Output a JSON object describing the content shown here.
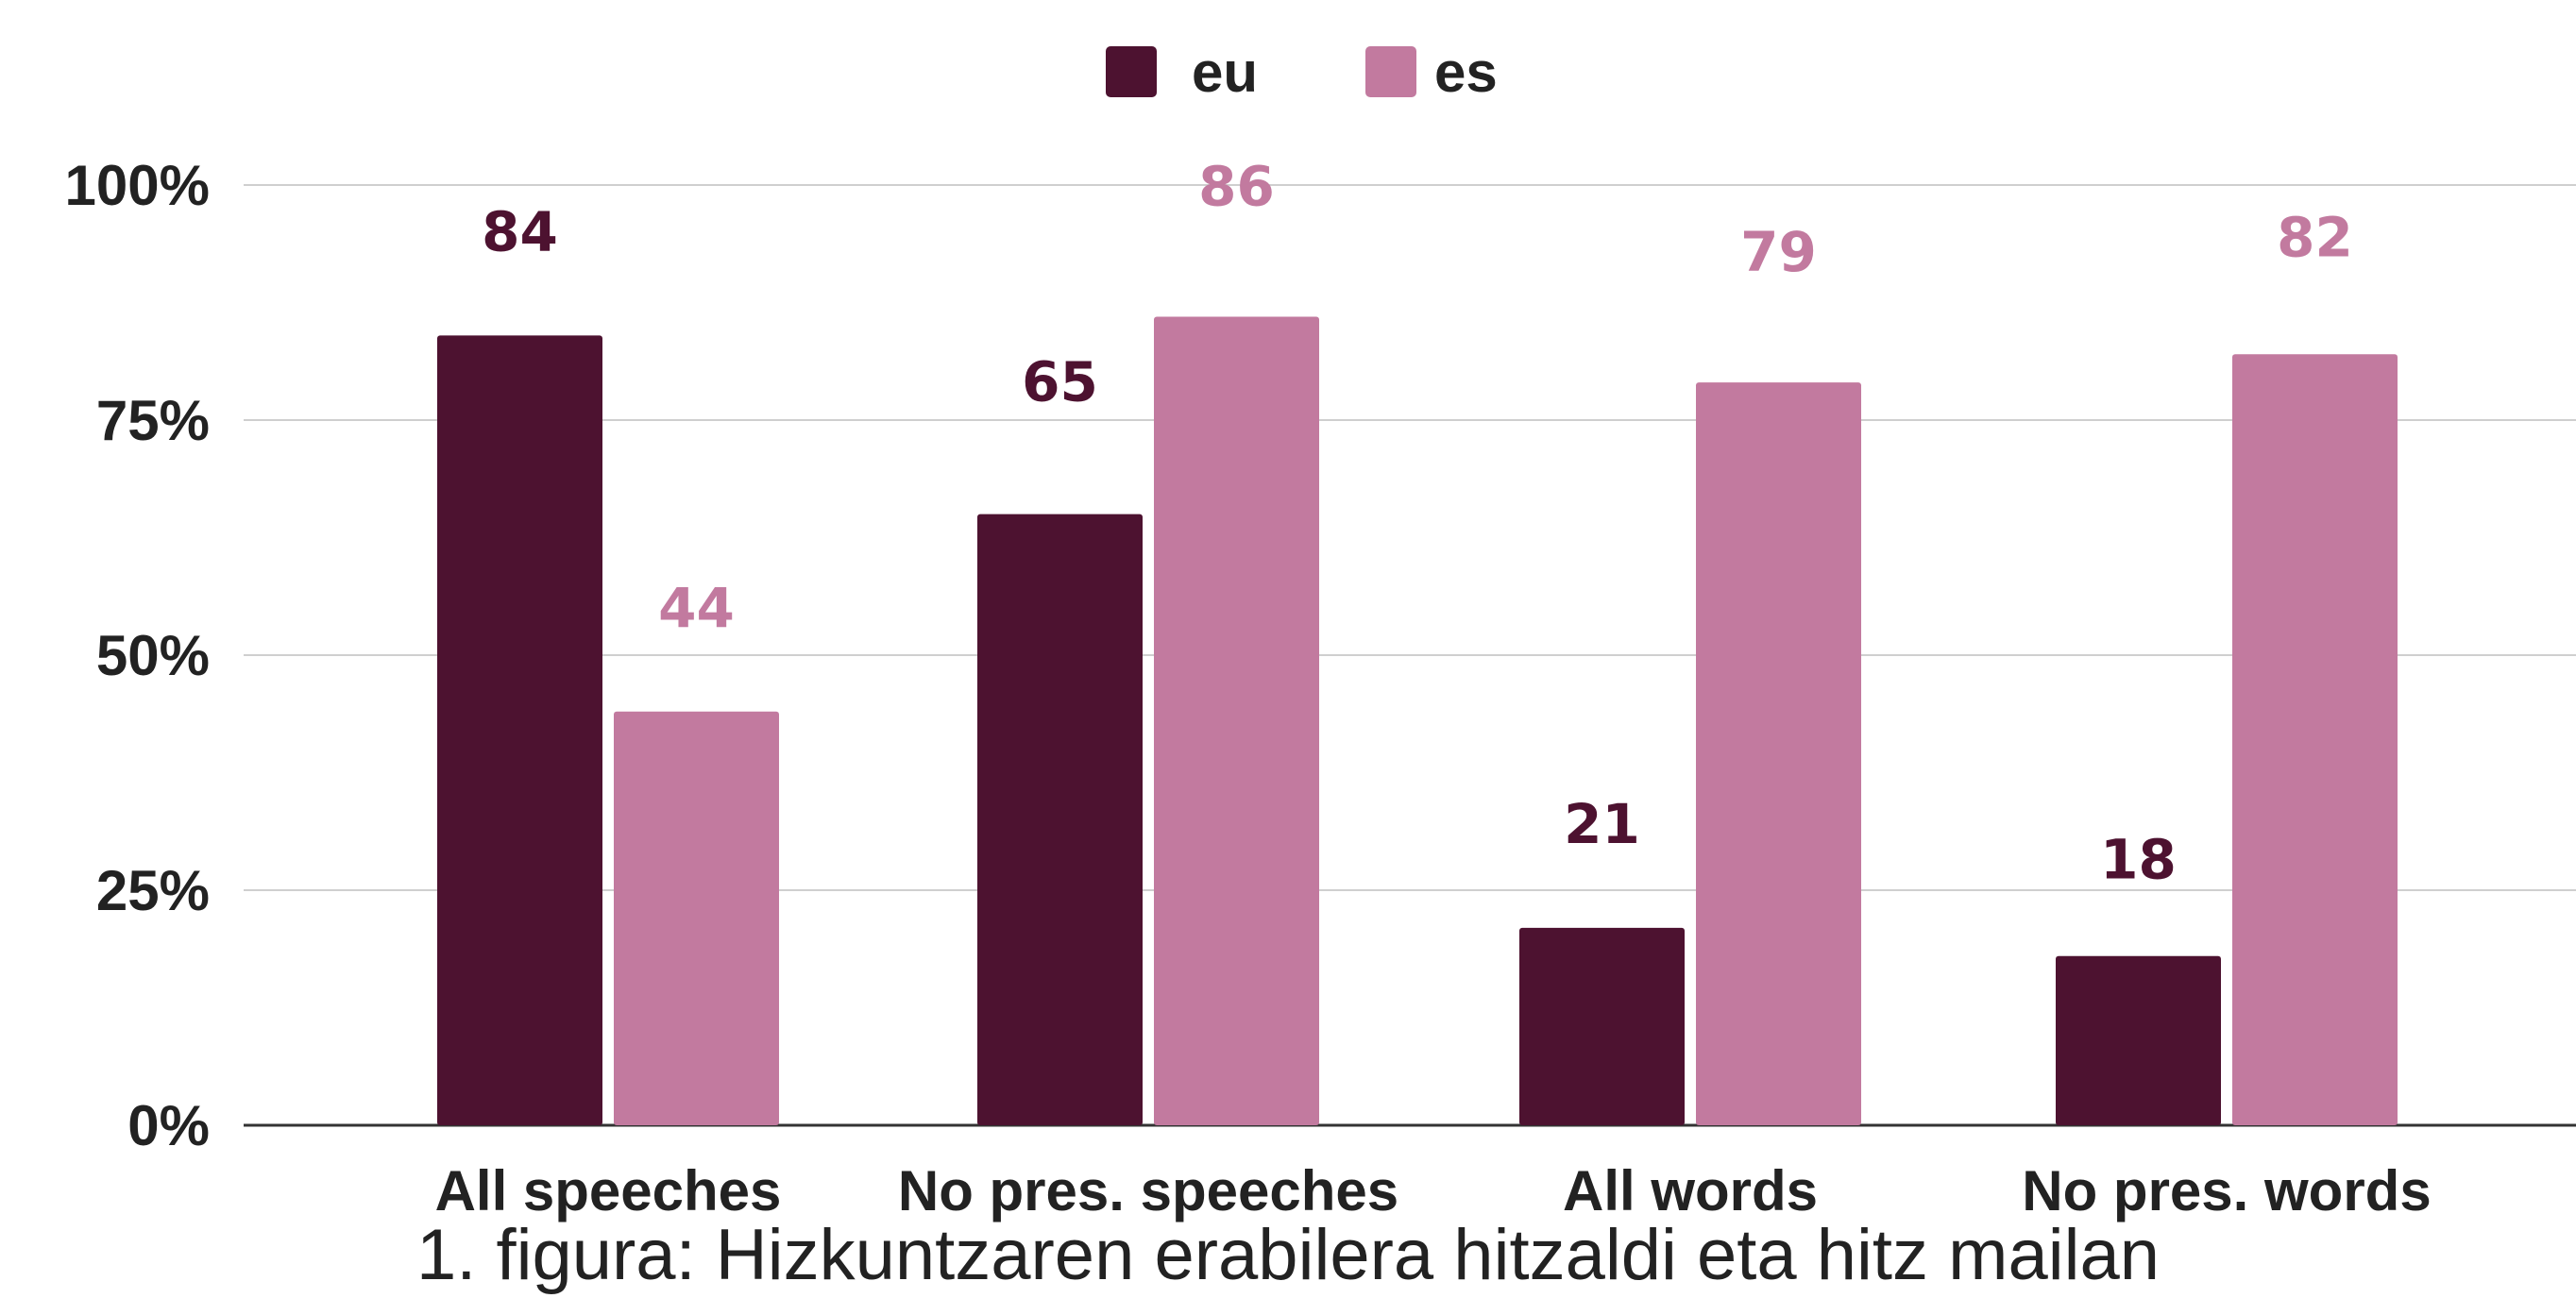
{
  "chart_data": {
    "type": "bar",
    "categories": [
      "All speeches",
      "No pres. speeches",
      "All words",
      "No pres. words"
    ],
    "series": [
      {
        "name": "eu",
        "color": "#4d1230",
        "values": [
          84,
          65,
          21,
          18
        ]
      },
      {
        "name": "es",
        "color": "#c27a9f",
        "values": [
          44,
          86,
          79,
          82
        ]
      }
    ],
    "y_ticks": [
      "0%",
      "25%",
      "50%",
      "75%",
      "100%"
    ],
    "ylim": [
      0,
      100
    ],
    "legend_position": "top-center",
    "grid": true,
    "data_labels": true
  },
  "caption": "1. figura: Hizkuntzaren erabilera hitzaldi eta hitz mailan"
}
